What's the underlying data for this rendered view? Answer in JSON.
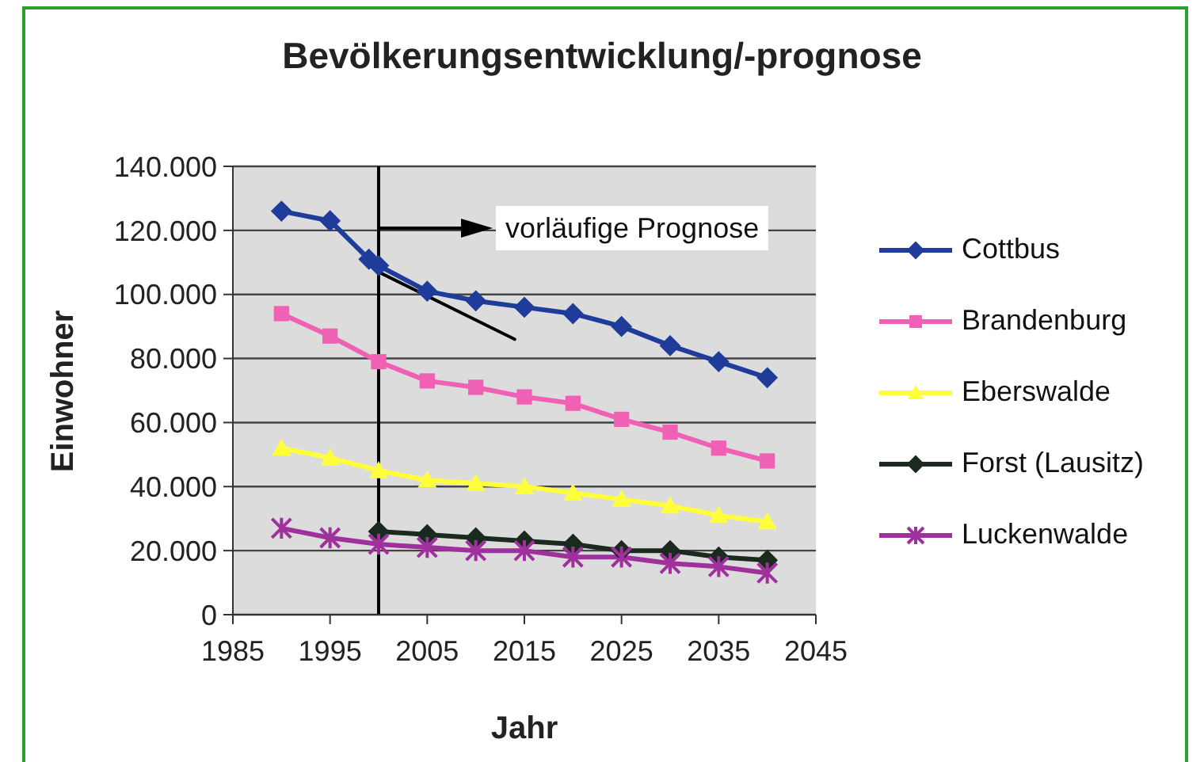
{
  "chart_data": {
    "type": "line",
    "title": "Bevölkerungsentwicklung/-prognose",
    "xlabel": "Jahr",
    "ylabel": "Einwohner",
    "xlim": [
      1985,
      2045
    ],
    "xticks": [
      1985,
      1995,
      2005,
      2015,
      2025,
      2035,
      2045
    ],
    "ylim": [
      0,
      140000
    ],
    "yticks": [
      0,
      {
        "value": 20000,
        "label": "20.000"
      },
      {
        "value": 40000,
        "label": "40.000"
      },
      {
        "value": 60000,
        "label": "60.000"
      },
      {
        "value": 80000,
        "label": "80.000"
      },
      {
        "value": 100000,
        "label": "100.000"
      },
      {
        "value": 120000,
        "label": "120.000"
      },
      {
        "value": 140000,
        "label": "140.000"
      }
    ],
    "grid": "y",
    "legend": "right",
    "series": [
      {
        "name": "Cottbus",
        "color": "#1f3c9a",
        "marker": "diamond",
        "x": [
          1990,
          1995,
          1999,
          2000,
          2005,
          2010,
          2015,
          2020,
          2025,
          2030,
          2035,
          2040
        ],
        "values": [
          126000,
          123000,
          111000,
          109000,
          101000,
          98000,
          96000,
          94000,
          90000,
          84000,
          79000,
          74000
        ]
      },
      {
        "name": "Brandenburg",
        "color": "#f060b4",
        "marker": "square",
        "x": [
          1990,
          1995,
          2000,
          2005,
          2010,
          2015,
          2020,
          2025,
          2030,
          2035,
          2040
        ],
        "values": [
          94000,
          87000,
          79000,
          73000,
          71000,
          68000,
          66000,
          61000,
          57000,
          52000,
          48000
        ]
      },
      {
        "name": "Eberswalde",
        "color": "#ffff3c",
        "marker": "triangle",
        "x": [
          1990,
          1995,
          2000,
          2005,
          2010,
          2015,
          2020,
          2025,
          2030,
          2035,
          2040
        ],
        "values": [
          52000,
          49000,
          45000,
          42000,
          41000,
          40000,
          38000,
          36000,
          34000,
          31000,
          29000
        ]
      },
      {
        "name": "Forst (Lausitz)",
        "color": "#1a2a1e",
        "marker": "diamond",
        "x": [
          2000,
          2005,
          2010,
          2015,
          2020,
          2025,
          2030,
          2035,
          2040
        ],
        "values": [
          26000,
          25000,
          24000,
          23000,
          22000,
          20000,
          20000,
          18000,
          17000
        ]
      },
      {
        "name": "Luckenwalde",
        "color": "#a0309c",
        "marker": "cross",
        "x": [
          1990,
          1995,
          2000,
          2005,
          2010,
          2015,
          2020,
          2025,
          2030,
          2035,
          2040
        ],
        "values": [
          27000,
          24000,
          22000,
          21000,
          20000,
          20000,
          18000,
          18000,
          16000,
          15000,
          13000
        ]
      },
      {
        "type": "line",
        "color": "#000000",
        "marker": "none",
        "x": [
          2000,
          2014
        ],
        "values": [
          107000,
          86000
        ]
      }
    ],
    "ref_lines": [
      {
        "axis": "x",
        "value": 2000,
        "color": "#000000"
      }
    ],
    "annotations": [
      "vorläufige Prognose"
    ]
  }
}
